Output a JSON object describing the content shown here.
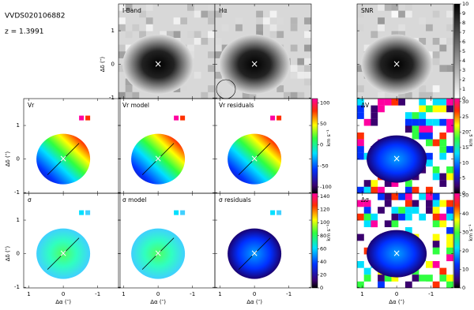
{
  "header": {
    "object_id": "VVDS020106882",
    "redshift": "z = 1.3991"
  },
  "axes": {
    "xlabel": "Δα (″)",
    "ylabel": "Δδ (″)",
    "xlim": [
      1.15,
      -1.65
    ],
    "ylim": [
      -1.02,
      1.8
    ],
    "xticks": [
      1,
      0,
      -1
    ],
    "yticks": [
      1,
      0,
      -1
    ]
  },
  "panels": [
    {
      "label": "I-Band"
    },
    {
      "label": "Hα"
    },
    {
      "label": "SNR"
    },
    {
      "label": "Vr"
    },
    {
      "label": "Vr model"
    },
    {
      "label": "Vr residuals"
    },
    {
      "label": "ΔV"
    },
    {
      "label": "σ"
    },
    {
      "label": "σ model"
    },
    {
      "label": "σ residuals"
    },
    {
      "label": "Δσ"
    }
  ],
  "colorbars": [
    {
      "ylim": [
        0,
        10
      ],
      "yticks": [
        0,
        1,
        2,
        3,
        4,
        5,
        6,
        7,
        8,
        9,
        10
      ]
    },
    {
      "label": "km s⁻¹",
      "ylim": [
        -115,
        110
      ],
      "yticks": [
        100,
        50,
        0,
        -50,
        -100
      ]
    },
    {
      "label": "km s⁻¹",
      "ylim": [
        0,
        145
      ],
      "yticks": [
        0,
        20,
        40,
        60,
        80,
        100,
        120,
        140
      ]
    },
    {
      "label": "km s⁻¹",
      "ylim": [
        0,
        31
      ],
      "yticks": [
        0,
        5,
        10,
        15,
        20,
        25,
        30
      ]
    },
    {
      "label": "km s⁻¹",
      "ylim": [
        0,
        51
      ],
      "yticks": [
        0,
        10,
        20,
        30,
        40,
        50
      ]
    }
  ]
}
